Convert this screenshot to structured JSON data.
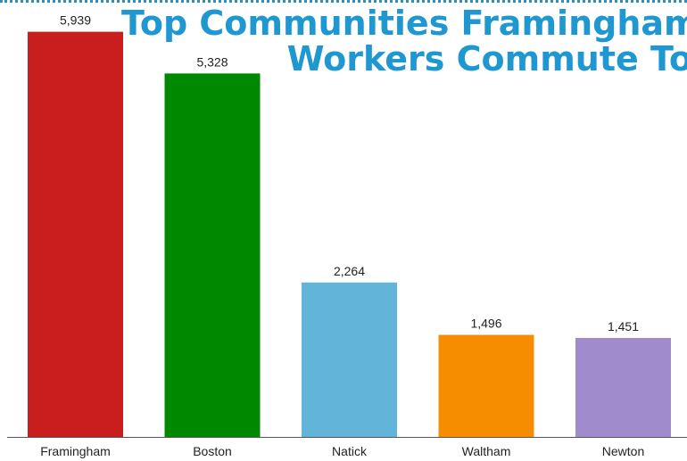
{
  "chart_data": {
    "type": "bar",
    "title_lines": [
      "Top Communities Framingham",
      "Workers Commute To"
    ],
    "categories": [
      "Framingham",
      "Boston",
      "Natick",
      "Waltham",
      "Newton"
    ],
    "values": [
      5939,
      5328,
      2264,
      1496,
      1451
    ],
    "value_labels": [
      "5,939",
      "5,328",
      "2,264",
      "1,496",
      "1,451"
    ],
    "colors": [
      "#c81e1e",
      "#008800",
      "#62b4d9",
      "#f68c00",
      "#a08ccc"
    ],
    "ylim": [
      0,
      6300
    ],
    "grid": false,
    "xlabel": "",
    "ylabel": ""
  }
}
